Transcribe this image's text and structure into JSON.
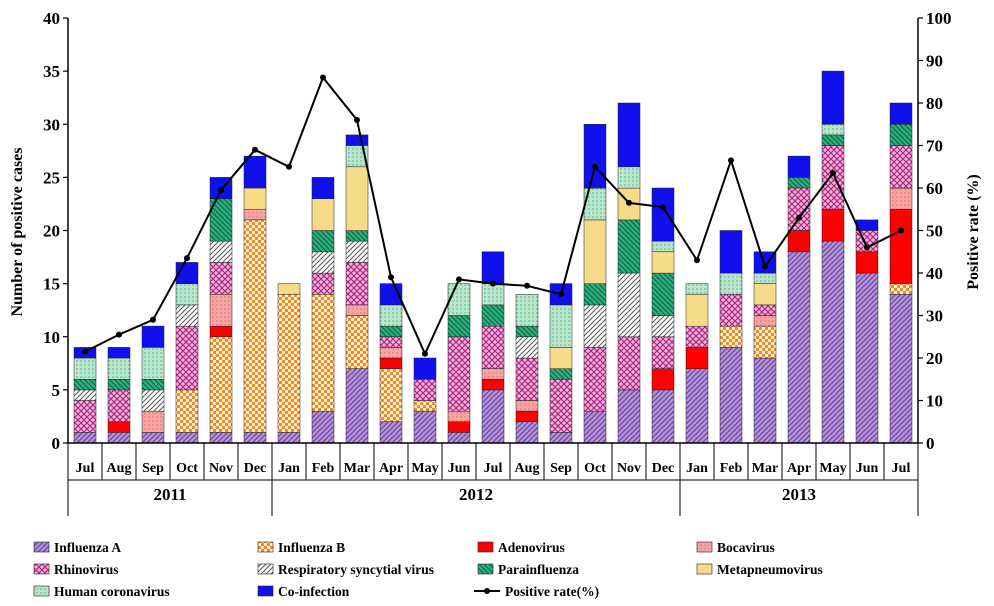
{
  "chart_data": {
    "type": "bar",
    "subtype": "stacked-bar-with-line",
    "categories": [
      "Jul",
      "Aug",
      "Sep",
      "Oct",
      "Nov",
      "Dec",
      "Jan",
      "Feb",
      "Mar",
      "Apr",
      "May",
      "Jun",
      "Jul",
      "Aug",
      "Sep",
      "Oct",
      "Nov",
      "Dec",
      "Jan",
      "Feb",
      "Mar",
      "Apr",
      "May",
      "Jun",
      "Jul"
    ],
    "year_groups": [
      {
        "label": "2011",
        "start": 0,
        "end": 5
      },
      {
        "label": "2012",
        "start": 6,
        "end": 17
      },
      {
        "label": "2013",
        "start": 18,
        "end": 24
      }
    ],
    "ylabel": "Number of positive cases",
    "y2label": "Positive rate (%)",
    "ylim": [
      0,
      40
    ],
    "y2lim": [
      0,
      100
    ],
    "yticks": [
      0,
      5,
      10,
      15,
      20,
      25,
      30,
      35,
      40
    ],
    "y2ticks": [
      0,
      10,
      20,
      30,
      40,
      50,
      60,
      70,
      80,
      90,
      100
    ],
    "legend_position": "bottom",
    "series": [
      {
        "name": "Influenza A",
        "color": "#9a72c2",
        "pattern": "purple-diag",
        "values": [
          1,
          1,
          1,
          1,
          1,
          1,
          1,
          3,
          7,
          2,
          3,
          1,
          5,
          2,
          1,
          3,
          5,
          5,
          7,
          9,
          8,
          18,
          19,
          16,
          14
        ]
      },
      {
        "name": "Influenza B",
        "color": "#f4a24e",
        "pattern": "orange-check",
        "values": [
          0,
          0,
          0,
          4,
          9,
          20,
          13,
          11,
          5,
          5,
          1,
          0,
          0,
          0,
          0,
          0,
          0,
          0,
          0,
          2,
          3,
          0,
          0,
          0,
          1
        ]
      },
      {
        "name": "Adenovirus",
        "color": "#ff0000",
        "pattern": "solid-red",
        "values": [
          0,
          1,
          0,
          0,
          1,
          0,
          0,
          0,
          0,
          1,
          0,
          1,
          1,
          1,
          0,
          0,
          0,
          2,
          2,
          0,
          0,
          2,
          3,
          2,
          7
        ]
      },
      {
        "name": "Bocavirus",
        "color": "#f7a1a1",
        "pattern": "pink-dots",
        "values": [
          0,
          0,
          2,
          0,
          3,
          1,
          0,
          0,
          1,
          1,
          0,
          1,
          1,
          1,
          0,
          0,
          0,
          0,
          0,
          0,
          1,
          0,
          0,
          0,
          2
        ]
      },
      {
        "name": "Rhinovirus",
        "color": "#d84fa0",
        "pattern": "magenta-cross",
        "values": [
          3,
          3,
          0,
          6,
          3,
          0,
          0,
          2,
          4,
          1,
          2,
          7,
          4,
          4,
          5,
          6,
          5,
          3,
          2,
          3,
          1,
          4,
          6,
          2,
          4
        ]
      },
      {
        "name": "Respiratory syncytial virus",
        "color": "#888888",
        "pattern": "gray-hatch",
        "values": [
          1,
          0,
          2,
          2,
          2,
          0,
          0,
          2,
          2,
          0,
          0,
          0,
          0,
          2,
          0,
          4,
          6,
          2,
          0,
          0,
          0,
          0,
          0,
          0,
          0
        ]
      },
      {
        "name": "Parainfluenza",
        "color": "#1e9a6e",
        "pattern": "green-hatch",
        "values": [
          1,
          1,
          1,
          0,
          4,
          0,
          0,
          2,
          1,
          1,
          0,
          2,
          2,
          1,
          1,
          2,
          5,
          4,
          0,
          0,
          0,
          1,
          1,
          0,
          2
        ]
      },
      {
        "name": "Metapneumovirus",
        "color": "#f6dc88",
        "pattern": "solid-yellow",
        "values": [
          0,
          0,
          0,
          0,
          0,
          2,
          1,
          3,
          6,
          0,
          0,
          0,
          0,
          0,
          2,
          6,
          3,
          2,
          3,
          0,
          2,
          0,
          0,
          0,
          0
        ]
      },
      {
        "name": "Human coronavirus",
        "color": "#9ed8b8",
        "pattern": "mint-dots",
        "values": [
          2,
          2,
          3,
          2,
          0,
          0,
          0,
          0,
          2,
          2,
          0,
          3,
          2,
          3,
          4,
          3,
          2,
          1,
          1,
          2,
          1,
          0,
          1,
          0,
          0
        ]
      },
      {
        "name": "Co-infection",
        "color": "#0a0ae0",
        "pattern": "solid-blue",
        "values": [
          1,
          1,
          2,
          2,
          2,
          3,
          0,
          2,
          1,
          2,
          2,
          0,
          3,
          0,
          2,
          6,
          6,
          5,
          0,
          4,
          2,
          2,
          5,
          1,
          2
        ]
      }
    ],
    "line": {
      "name": "Positive rate(%)",
      "color": "#000000",
      "values": [
        21.5,
        25.5,
        29,
        43.5,
        59.5,
        69,
        65,
        86,
        76,
        39,
        21,
        38.5,
        37.5,
        37,
        35,
        65,
        56.5,
        55.5,
        43,
        66.5,
        41.5,
        53,
        63.5,
        46,
        50
      ]
    }
  }
}
